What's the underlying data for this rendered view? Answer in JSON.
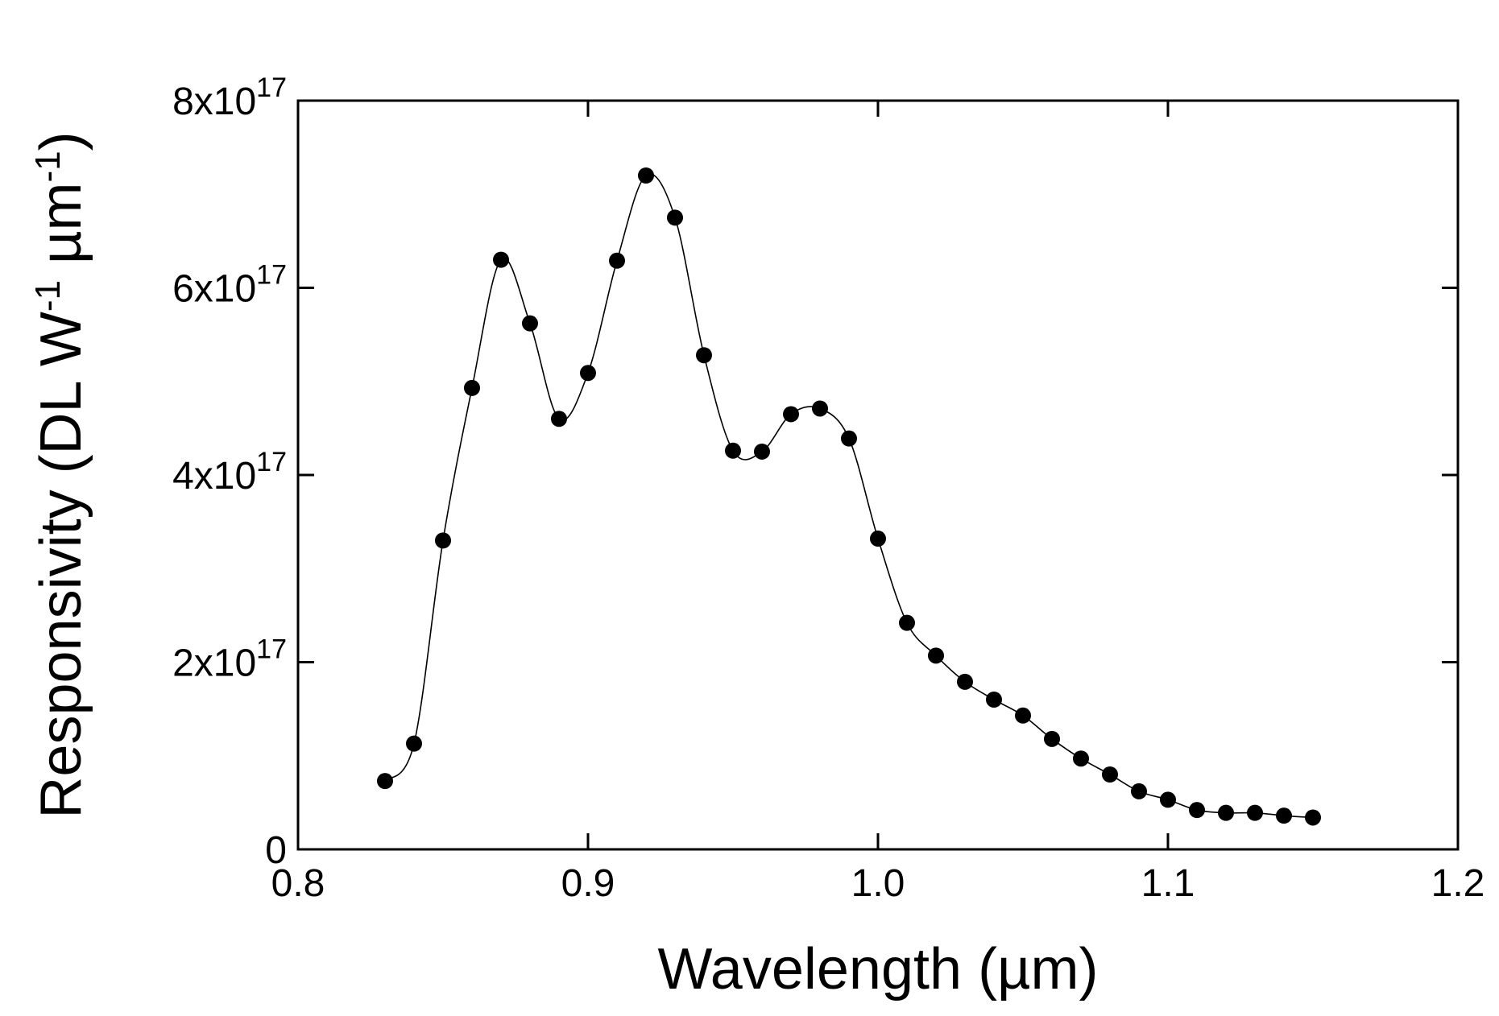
{
  "chart_data": {
    "type": "line",
    "title": "",
    "xlabel": "Wavelength (µm)",
    "ylabel": {
      "text_before_first_sup": "Responsivity (DL W",
      "sup1": "-1",
      "text_middle": " µm",
      "sup2": "-1",
      "text_end": ")"
    },
    "xlim": [
      0.8,
      1.2
    ],
    "ylim": [
      0,
      8e+17
    ],
    "x_ticks": [
      {
        "value": 0.8,
        "label": "0.8"
      },
      {
        "value": 0.9,
        "label": "0.9"
      },
      {
        "value": 1.0,
        "label": "1.0"
      },
      {
        "value": 1.1,
        "label": "1.1"
      },
      {
        "value": 1.2,
        "label": "1.2"
      }
    ],
    "y_ticks": [
      {
        "value": 0,
        "base": "0",
        "exp": ""
      },
      {
        "value": 2e+17,
        "base": "2x10",
        "exp": "17"
      },
      {
        "value": 4e+17,
        "base": "4x10",
        "exp": "17"
      },
      {
        "value": 6e+17,
        "base": "6x10",
        "exp": "17"
      },
      {
        "value": 8e+17,
        "base": "8x10",
        "exp": "17"
      }
    ],
    "grid": false,
    "legend": "none",
    "series": [
      {
        "name": "Responsivity",
        "color": "#000000",
        "marker": "circle",
        "x": [
          0.83,
          0.84,
          0.85,
          0.86,
          0.87,
          0.88,
          0.89,
          0.9,
          0.91,
          0.92,
          0.93,
          0.94,
          0.95,
          0.96,
          0.97,
          0.98,
          0.99,
          1.0,
          1.01,
          1.02,
          1.03,
          1.04,
          1.05,
          1.06,
          1.07,
          1.08,
          1.09,
          1.1,
          1.11,
          1.12,
          1.13,
          1.14,
          1.15
        ],
        "y": [
          7.3e+16,
          1.13e+17,
          3.3e+17,
          4.93e+17,
          6.3e+17,
          5.62e+17,
          4.6e+17,
          5.09e+17,
          6.29e+17,
          7.2e+17,
          6.75e+17,
          5.28e+17,
          4.26e+17,
          4.25e+17,
          4.65e+17,
          4.71e+17,
          4.39e+17,
          3.32e+17,
          2.42e+17,
          2.07e+17,
          1.79e+17,
          1.6e+17,
          1.43e+17,
          1.18e+17,
          9.7e+16,
          8e+16,
          6.2e+16,
          5.3e+16,
          4.2e+16,
          3.9e+16,
          3.9e+16,
          3.6e+16,
          3.4e+16
        ]
      }
    ]
  }
}
